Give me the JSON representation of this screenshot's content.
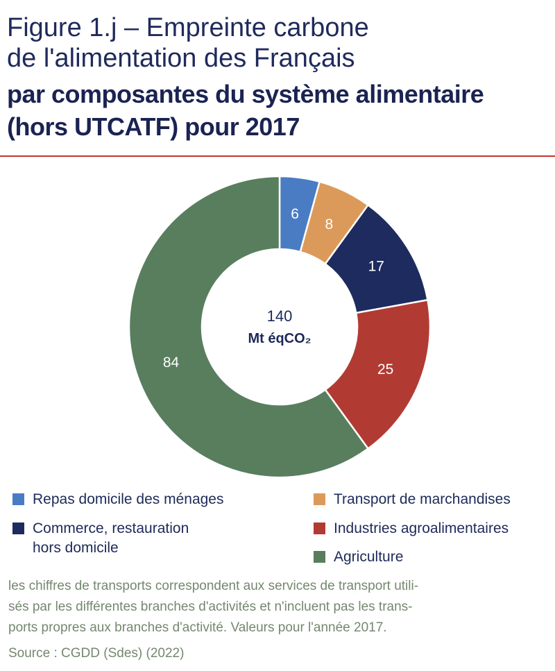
{
  "header": {
    "title_line1": "Figure 1.j – Empreinte carbone",
    "title_line2": "de l'alimentation des Français",
    "subtitle_line1": "par composantes du système alimentaire",
    "subtitle_line2": "(hors UTCATF) pour 2017"
  },
  "chart_data": {
    "type": "pie",
    "variant": "donut",
    "title": "Empreinte carbone de l'alimentation des Français par composantes du système alimentaire (hors UTCATF) pour 2017",
    "total": {
      "value": "140",
      "unit": "Mt éqCO₂"
    },
    "categories": [
      "Repas domicile des ménages",
      "Transport de marchandises",
      "Commerce, restauration hors domicile",
      "Industries agroalimentaires",
      "Agriculture"
    ],
    "values": [
      6,
      8,
      17,
      25,
      84
    ],
    "colors": [
      "#4a7cc4",
      "#dc9a5a",
      "#1d2b5e",
      "#b13b33",
      "#587e5e"
    ],
    "label_colors": [
      "#ffffff",
      "#ffffff",
      "#ffffff",
      "#ffffff",
      "#ffffff"
    ],
    "legend_position": "bottom"
  },
  "legend": {
    "items": [
      {
        "label": "Repas domicile des ménages",
        "color": "#4a7cc4"
      },
      {
        "label": "Transport de marchandises",
        "color": "#dc9a5a"
      },
      {
        "label_line1": "Commerce, restauration",
        "label_line2": "hors domicile",
        "color": "#1d2b5e"
      },
      {
        "label": "Industries agroalimentaires",
        "color": "#b13b33"
      },
      {
        "label": "Agriculture",
        "color": "#587e5e"
      }
    ]
  },
  "footer": {
    "note_line1": "les chiffres de transports correspondent aux services de transport utili-",
    "note_line2": "sés par les différentes branches d'activités et n'incluent pas les trans-",
    "note_line3": "ports propres aux branches d'activité. Valeurs pour l'année 2017.",
    "source": "Source : CGDD (Sdes) (2022)"
  }
}
